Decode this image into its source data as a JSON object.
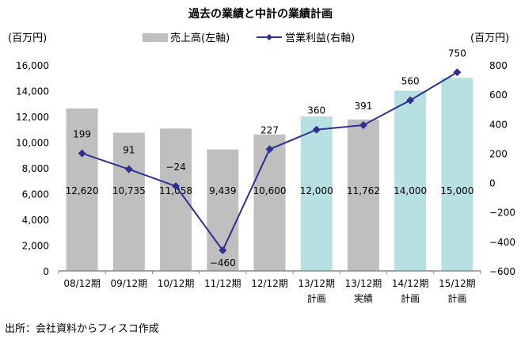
{
  "chart_data": {
    "type": "bar+line",
    "title": "過去の業績と中計の業績計画",
    "left_unit": "(百万円)",
    "right_unit": "(百万円)",
    "categories": [
      [
        "08/12期"
      ],
      [
        "09/12期"
      ],
      [
        "10/12期"
      ],
      [
        "11/12期"
      ],
      [
        "12/12期"
      ],
      [
        "13/12期",
        "計画"
      ],
      [
        "13/12期",
        "実績"
      ],
      [
        "14/12期",
        "計画"
      ],
      [
        "15/12期",
        "計画"
      ]
    ],
    "series": [
      {
        "name": "売上高(左軸)",
        "type": "bar",
        "axis": "left",
        "values": [
          12620,
          10735,
          11058,
          9439,
          10600,
          12000,
          11762,
          14000,
          15000
        ],
        "labels": [
          "12,620",
          "10,735",
          "11,058",
          "9,439",
          "10,600",
          "12,000",
          "11,762",
          "14,000",
          "15,000"
        ],
        "colors": [
          "#bfbfbf",
          "#bfbfbf",
          "#bfbfbf",
          "#bfbfbf",
          "#bfbfbf",
          "#b7e0e2",
          "#bfbfbf",
          "#b7e0e2",
          "#b7e0e2"
        ]
      },
      {
        "name": "営業利益(右軸)",
        "type": "line",
        "axis": "right",
        "color": "#2e3192",
        "values": [
          199,
          91,
          -24,
          -460,
          227,
          360,
          391,
          560,
          750
        ],
        "labels": [
          "199",
          "91",
          "−24",
          "−460",
          "227",
          "360",
          "391",
          "560",
          "750"
        ]
      }
    ],
    "left_axis": {
      "range": [
        0,
        16000
      ],
      "ticks": [
        "0",
        "2,000",
        "4,000",
        "6,000",
        "8,000",
        "10,000",
        "12,000",
        "14,000",
        "16,000"
      ]
    },
    "right_axis": {
      "range": [
        -600,
        800
      ],
      "ticks": [
        "−600",
        "−400",
        "−200",
        "0",
        "200",
        "400",
        "600",
        "800"
      ]
    },
    "grid": false,
    "legend": "top-center"
  },
  "source": "出所：会社資料からフィスコ作成"
}
